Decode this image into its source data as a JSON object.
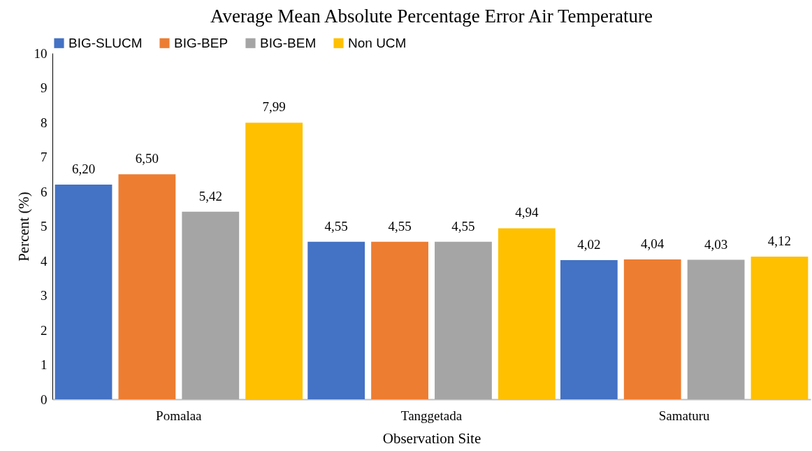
{
  "chart_data": {
    "type": "bar",
    "title": "Average Mean Absolute Percentage Error Air Temperature",
    "xlabel": "Observation Site",
    "ylabel": "Percent (%)",
    "categories": [
      "Pomalaa",
      "Tanggetada",
      "Samaturu"
    ],
    "series": [
      {
        "name": "BIG-SLUCM",
        "color": "#4472c4",
        "values": [
          6.2,
          4.55,
          4.02
        ],
        "value_labels": [
          "6,20",
          "4,55",
          "4,02"
        ]
      },
      {
        "name": "BIG-BEP",
        "color": "#ed7d31",
        "values": [
          6.5,
          4.55,
          4.04
        ],
        "value_labels": [
          "6,50",
          "4,55",
          "4,04"
        ]
      },
      {
        "name": "BIG-BEM",
        "color": "#a5a5a5",
        "values": [
          5.42,
          4.55,
          4.03
        ],
        "value_labels": [
          "5,42",
          "4,55",
          "4,03"
        ]
      },
      {
        "name": "Non UCM",
        "color": "#ffc000",
        "values": [
          7.99,
          4.94,
          4.12
        ],
        "value_labels": [
          "7,99",
          "4,94",
          "4,12"
        ]
      }
    ],
    "ylim": [
      0,
      10
    ],
    "yticks": [
      0,
      1,
      2,
      3,
      4,
      5,
      6,
      7,
      8,
      9,
      10
    ],
    "legend": "top",
    "grid": false
  }
}
